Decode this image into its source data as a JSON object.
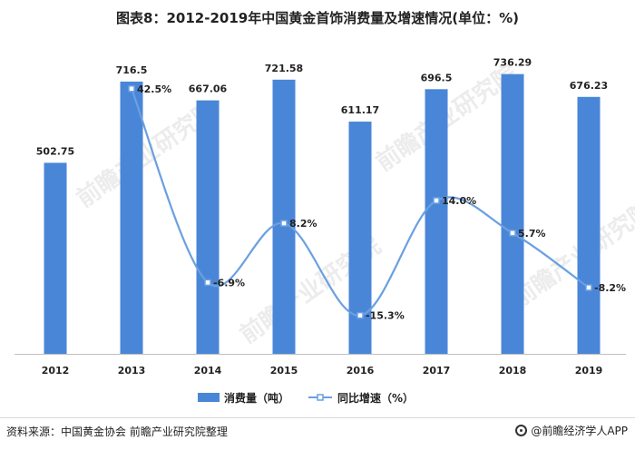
{
  "title": "图表8：2012-2019年中国黄金首饰消费量及增速情况(单位：%)",
  "source": "资料来源：中国黄金协会 前瞻产业研究院整理",
  "brand": "@前瞻经济学人APP",
  "watermark": "前瞻产业研究院",
  "colors": {
    "bar": "#4a86d8",
    "line": "#6aa0e0",
    "text": "#222222"
  },
  "chart_data": {
    "type": "bar",
    "categories": [
      "2012",
      "2013",
      "2014",
      "2015",
      "2016",
      "2017",
      "2018",
      "2019"
    ],
    "series": [
      {
        "name": "消费量（吨）",
        "type": "bar",
        "values": [
          502.75,
          716.5,
          667.06,
          721.58,
          611.17,
          696.5,
          736.29,
          676.23
        ],
        "labels": [
          "502.75",
          "716.5",
          "667.06",
          "721.58",
          "611.17",
          "696.5",
          "736.29",
          "676.23"
        ]
      },
      {
        "name": "同比增速（%）",
        "type": "line",
        "values": [
          null,
          42.5,
          -6.9,
          8.2,
          -15.3,
          14.0,
          5.7,
          -8.2
        ],
        "labels": [
          "",
          "42.5%",
          "-6.9%",
          "8.2%",
          "-15.3%",
          "14.0%",
          "5.7%",
          "-8.2%"
        ]
      }
    ],
    "bar_range": [
      0,
      760
    ],
    "line_range": [
      -20,
      48
    ],
    "legend_position": "bottom"
  }
}
